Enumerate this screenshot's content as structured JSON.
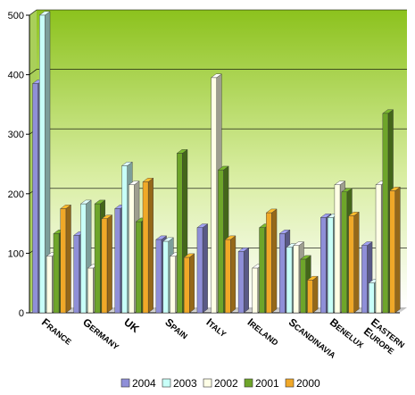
{
  "chart_data": {
    "type": "bar",
    "three_d": true,
    "categories": [
      "France",
      "Germany",
      "UK",
      "Spain",
      "Italy",
      "Ireland",
      "Scandinavia",
      "Benelux",
      "Eastern Europe"
    ],
    "category_labels": [
      {
        "cap": "F",
        "rest": "RANCE"
      },
      {
        "cap": "G",
        "rest": "ERMANY"
      },
      {
        "cap": "UK",
        "rest": ""
      },
      {
        "cap": "S",
        "rest": "PAIN"
      },
      {
        "cap": "I",
        "rest": "TALY"
      },
      {
        "cap": "I",
        "rest": "RELAND"
      },
      {
        "cap": "S",
        "rest": "CANDINAVIA"
      },
      {
        "cap": "B",
        "rest": "ENELUX"
      },
      {
        "cap": "E",
        "rest": "ASTERN",
        "cap2": "E",
        "rest2": "UROPE"
      }
    ],
    "series": [
      {
        "name": "2004",
        "color": "#8f8fd8",
        "values": [
          385,
          130,
          175,
          123,
          143,
          103,
          133,
          160,
          113
        ]
      },
      {
        "name": "2003",
        "color": "#c8fff8",
        "values": [
          500,
          183,
          247,
          120,
          0,
          0,
          110,
          160,
          50
        ]
      },
      {
        "name": "2002",
        "color": "#ffffe6",
        "values": [
          95,
          75,
          215,
          95,
          395,
          75,
          113,
          215,
          215
        ]
      },
      {
        "name": "2001",
        "color": "#6ea52a",
        "values": [
          133,
          183,
          153,
          268,
          240,
          143,
          90,
          203,
          335
        ]
      },
      {
        "name": "2000",
        "color": "#f0a828",
        "values": [
          175,
          158,
          220,
          93,
          123,
          168,
          55,
          163,
          205
        ]
      }
    ],
    "yticks": [
      0,
      100,
      200,
      300,
      400,
      500
    ],
    "ylim": [
      0,
      500
    ],
    "grid": true,
    "legend": "bottom"
  }
}
